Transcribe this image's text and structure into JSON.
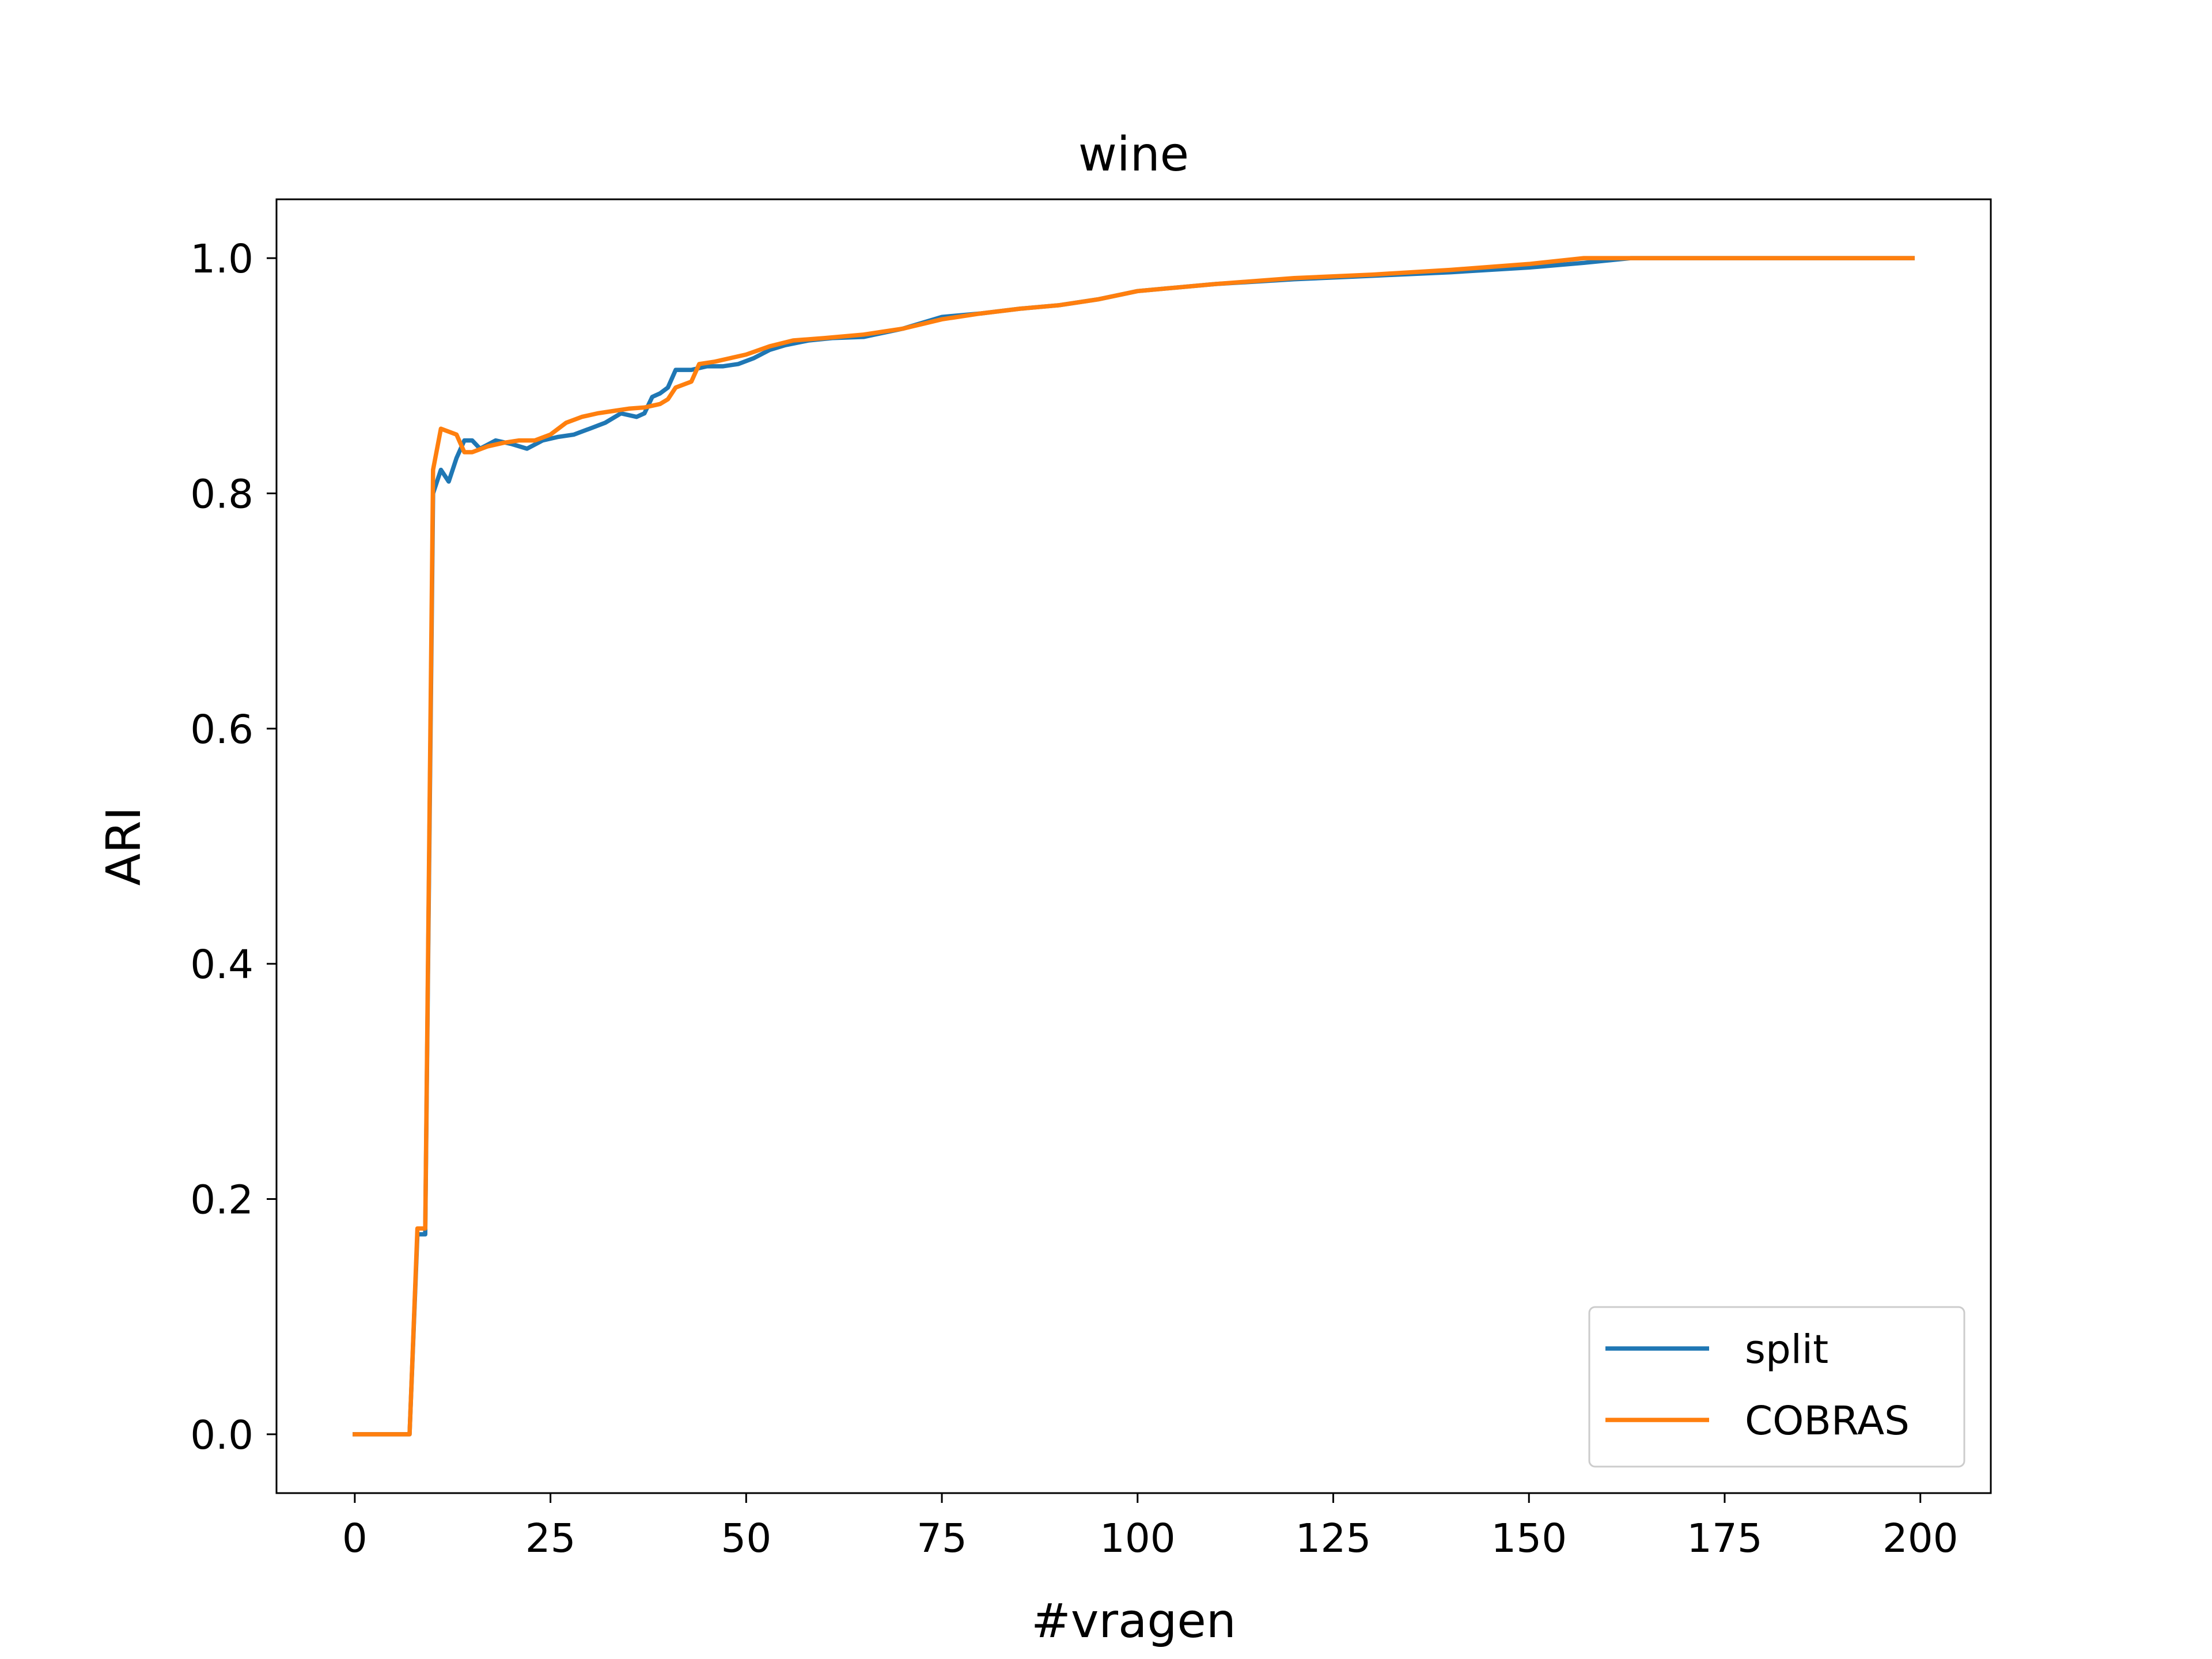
{
  "chart_data": {
    "type": "line",
    "title": "wine",
    "xlabel": "#vragen",
    "ylabel": "ARI",
    "xlim": [
      -10,
      209
    ],
    "ylim": [
      -0.05,
      1.05
    ],
    "x_ticks": [
      0,
      25,
      50,
      75,
      100,
      125,
      150,
      175,
      200
    ],
    "x_tick_labels": [
      "0",
      "25",
      "50",
      "75",
      "100",
      "125",
      "150",
      "175",
      "200"
    ],
    "y_ticks": [
      0.0,
      0.2,
      0.4,
      0.6,
      0.8,
      1.0
    ],
    "y_tick_labels": [
      "0.0",
      "0.2",
      "0.4",
      "0.6",
      "0.8",
      "1.0"
    ],
    "grid": false,
    "legend_position": "lower-right",
    "series": [
      {
        "name": "split",
        "color": "#1f77b4",
        "x": [
          0,
          7,
          8,
          9,
          10,
          11,
          12,
          13,
          14,
          15,
          16,
          18,
          20,
          22,
          24,
          26,
          28,
          30,
          32,
          34,
          36,
          37,
          38,
          39,
          40,
          41,
          43,
          45,
          47,
          49,
          51,
          53,
          55,
          58,
          61,
          65,
          70,
          75,
          80,
          85,
          90,
          95,
          100,
          110,
          120,
          130,
          140,
          150,
          157,
          163,
          170,
          180,
          190,
          199
        ],
        "y": [
          0.0,
          0.0,
          0.17,
          0.17,
          0.8,
          0.82,
          0.81,
          0.83,
          0.845,
          0.845,
          0.838,
          0.845,
          0.842,
          0.838,
          0.845,
          0.848,
          0.85,
          0.855,
          0.86,
          0.868,
          0.865,
          0.868,
          0.882,
          0.885,
          0.89,
          0.905,
          0.905,
          0.908,
          0.908,
          0.91,
          0.915,
          0.922,
          0.926,
          0.93,
          0.932,
          0.933,
          0.94,
          0.95,
          0.953,
          0.957,
          0.96,
          0.965,
          0.972,
          0.978,
          0.982,
          0.985,
          0.988,
          0.992,
          0.996,
          1.0,
          1.0,
          1.0,
          1.0,
          1.0
        ]
      },
      {
        "name": "COBRAS",
        "color": "#ff7f0e",
        "x": [
          0,
          7,
          8,
          9,
          10,
          11,
          13,
          14,
          15,
          17,
          19,
          21,
          23,
          25,
          27,
          29,
          31,
          33,
          35,
          37,
          39,
          40,
          41,
          43,
          44,
          46,
          48,
          50,
          53,
          56,
          60,
          65,
          70,
          75,
          80,
          85,
          90,
          95,
          100,
          110,
          120,
          130,
          140,
          150,
          157,
          165,
          175,
          185,
          199
        ],
        "y": [
          0.0,
          0.0,
          0.175,
          0.175,
          0.82,
          0.855,
          0.85,
          0.835,
          0.835,
          0.84,
          0.843,
          0.845,
          0.845,
          0.85,
          0.86,
          0.865,
          0.868,
          0.87,
          0.872,
          0.873,
          0.876,
          0.88,
          0.89,
          0.895,
          0.91,
          0.912,
          0.915,
          0.918,
          0.925,
          0.93,
          0.932,
          0.935,
          0.94,
          0.948,
          0.953,
          0.957,
          0.96,
          0.965,
          0.972,
          0.978,
          0.983,
          0.986,
          0.99,
          0.995,
          1.0,
          1.0,
          1.0,
          1.0,
          1.0
        ]
      }
    ]
  }
}
